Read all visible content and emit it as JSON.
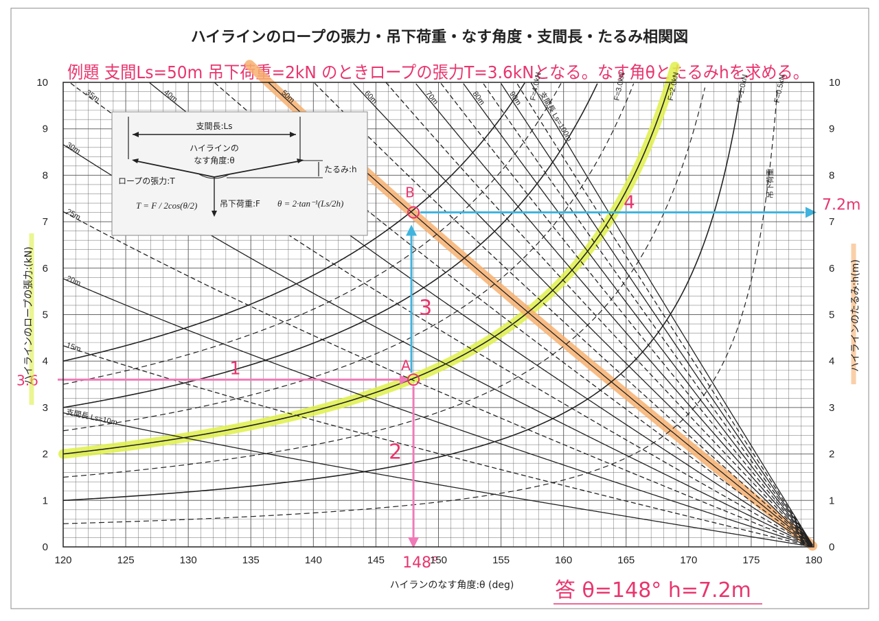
{
  "chart_data": {
    "type": "line",
    "title": "ハイラインのロープの張力・吊下荷重・なす角度・支間長・たるみ相関図",
    "xlabel": "ハイランのなす角度:θ (deg)",
    "ylabel_left": "ハイラインのロープの張力:(kN)",
    "ylabel_right": "ハイラインのたるみ:h(m)",
    "xlim": [
      120,
      180
    ],
    "ylim": [
      0,
      10
    ],
    "x_ticks": [
      "120",
      "125",
      "130",
      "135",
      "140",
      "145",
      "150",
      "155",
      "160",
      "165",
      "170",
      "175",
      "180"
    ],
    "y_ticks": [
      "0",
      "1",
      "2",
      "3",
      "4",
      "5",
      "6",
      "7",
      "8",
      "9",
      "10"
    ],
    "grid": true,
    "tension_series": [
      {
        "name": "F=0.5kN",
        "load_kN": 0.5,
        "label": "F=0.5kN",
        "label_x": 177,
        "dashed": true
      },
      {
        "name": "F=1.0kN",
        "load_kN": 1.0,
        "label": "F=1.0kN",
        "label_x": 174,
        "dashed": false
      },
      {
        "name": "F=1.5kN",
        "load_kN": 1.5,
        "label": "",
        "label_x": 0,
        "dashed": true
      },
      {
        "name": "F=2.0kN",
        "load_kN": 2.0,
        "label": "F=2.0kN",
        "label_x": 168.5,
        "dashed": false
      },
      {
        "name": "F=2.5kN",
        "load_kN": 2.5,
        "label": "",
        "label_x": 0,
        "dashed": true
      },
      {
        "name": "F=3.0kN",
        "load_kN": 3.0,
        "label": "F=3.0kN",
        "label_x": 164.2,
        "dashed": false
      },
      {
        "name": "F=3.5kN",
        "load_kN": 3.5,
        "label": "",
        "label_x": 0,
        "dashed": true
      },
      {
        "name": "F=4.0kN",
        "load_kN": 4.0,
        "label": "F=4.0kN",
        "label_x": 157.5,
        "dashed": false
      }
    ],
    "load_label": "吊下荷重",
    "sag_series": [
      {
        "span_m": 10,
        "label": "支間長 Ls=10m",
        "dashed": false
      },
      {
        "span_m": 15,
        "label": "15m",
        "dashed": true
      },
      {
        "span_m": 20,
        "label": "20m",
        "dashed": false
      },
      {
        "span_m": 25,
        "label": "25m",
        "dashed": true
      },
      {
        "span_m": 30,
        "label": "30m",
        "dashed": false
      },
      {
        "span_m": 35,
        "label": "35m",
        "dashed": true
      },
      {
        "span_m": 40,
        "label": "40m",
        "dashed": false
      },
      {
        "span_m": 45,
        "label": "",
        "dashed": true
      },
      {
        "span_m": 50,
        "label": "50m",
        "dashed": false
      },
      {
        "span_m": 55,
        "label": "",
        "dashed": true
      },
      {
        "span_m": 60,
        "label": "60m",
        "dashed": false
      },
      {
        "span_m": 65,
        "label": "",
        "dashed": true
      },
      {
        "span_m": 70,
        "label": "70m",
        "dashed": false
      },
      {
        "span_m": 75,
        "label": "",
        "dashed": true
      },
      {
        "span_m": 80,
        "label": "80m",
        "dashed": false
      },
      {
        "span_m": 85,
        "label": "",
        "dashed": true
      },
      {
        "span_m": 90,
        "label": "90m",
        "dashed": false
      },
      {
        "span_m": 95,
        "label": "",
        "dashed": true
      },
      {
        "span_m": 100,
        "label": "支間長 Ls=100m",
        "dashed": false
      }
    ],
    "highlight_tension_load_kN": 2.0,
    "highlight_sag_span_m": 50,
    "point_A": {
      "label": "A",
      "theta": 148,
      "tension_kN": 3.6
    },
    "point_B": {
      "label": "B",
      "theta": 148,
      "sag_m": 7.2
    },
    "steps": [
      "1",
      "2",
      "3",
      "4"
    ],
    "marks": {
      "left_value": "3.6",
      "bottom_value": "148°",
      "right_value": "7.2m"
    },
    "problem_text": "例題 支間Ls=50m 吊下荷重=2kN のときロープの張力T=3.6kNとなる。なす角θとたるみhを求める。",
    "answer_text": "答 θ=148° h=7.2m",
    "diagram": {
      "span_label": "支間長:Ls",
      "angle_label_1": "ハイラインの",
      "angle_label_2": "なす角度:θ",
      "sag_label": "たるみ:h",
      "tension_label": "ロープの張力:T",
      "load_label": "吊下荷重:F",
      "formula_T": "T = F / 2cos(θ/2)",
      "formula_theta": "θ = 2·tan⁻¹(Ls/2h)"
    },
    "colors": {
      "ink": "#222222",
      "grid": "#555555",
      "highlight_yellow": "#dff04a",
      "highlight_orange": "#f7b070",
      "pink": "#e8356e",
      "pink_arrow": "#f07ab8",
      "blue": "#3fb4de"
    }
  }
}
